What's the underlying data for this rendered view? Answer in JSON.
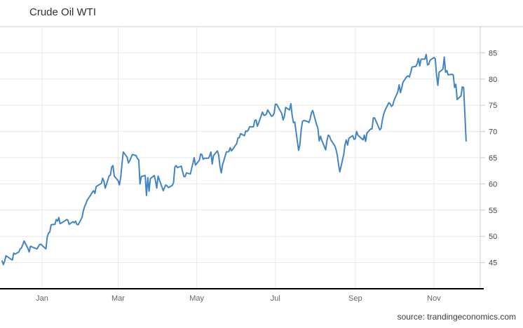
{
  "header": {
    "title": "Crude Oil WTI"
  },
  "footer": {
    "source_label": "source: trandingeconomics.com"
  },
  "colors": {
    "line": "#4285c6",
    "grid": "#e8e8e8",
    "plot_border": "#cccccc",
    "axis_line": "#000000",
    "y_tick_text": "#444444",
    "x_tick_text": "#666666",
    "title_text": "#2f2f2f"
  },
  "chart_data": {
    "type": "line",
    "title": "Crude Oil WTI",
    "xlabel": "",
    "ylabel": "",
    "ylim": [
      40,
      90
    ],
    "y_ticks": [
      45,
      50,
      55,
      60,
      65,
      70,
      75,
      80,
      85
    ],
    "y_axis_side": "right",
    "grid": true,
    "legend_position": "none",
    "x_range": [
      "2020-12-01",
      "2021-11-26"
    ],
    "x_tick_labels": [
      "Jan",
      "Mar",
      "May",
      "Jul",
      "Sep",
      "Nov"
    ],
    "x_tick_dates": [
      "2021-01-01",
      "2021-03-01",
      "2021-05-01",
      "2021-07-01",
      "2021-09-01",
      "2021-11-01"
    ],
    "series": [
      {
        "name": "Crude Oil WTI",
        "points": [
          [
            "2020-12-01",
            45.3
          ],
          [
            "2020-12-02",
            44.6
          ],
          [
            "2020-12-03",
            45.3
          ],
          [
            "2020-12-04",
            46.3
          ],
          [
            "2020-12-07",
            45.8
          ],
          [
            "2020-12-08",
            45.6
          ],
          [
            "2020-12-09",
            45.5
          ],
          [
            "2020-12-10",
            46.8
          ],
          [
            "2020-12-11",
            46.6
          ],
          [
            "2020-12-14",
            47.0
          ],
          [
            "2020-12-15",
            47.6
          ],
          [
            "2020-12-16",
            47.8
          ],
          [
            "2020-12-17",
            48.4
          ],
          [
            "2020-12-18",
            49.1
          ],
          [
            "2020-12-21",
            47.7
          ],
          [
            "2020-12-22",
            47.0
          ],
          [
            "2020-12-23",
            48.1
          ],
          [
            "2020-12-28",
            47.6
          ],
          [
            "2020-12-29",
            48.0
          ],
          [
            "2020-12-30",
            48.4
          ],
          [
            "2020-12-31",
            48.5
          ],
          [
            "2021-01-04",
            47.6
          ],
          [
            "2021-01-05",
            49.9
          ],
          [
            "2021-01-06",
            50.6
          ],
          [
            "2021-01-07",
            50.8
          ],
          [
            "2021-01-08",
            52.2
          ],
          [
            "2021-01-11",
            52.3
          ],
          [
            "2021-01-12",
            53.2
          ],
          [
            "2021-01-13",
            52.9
          ],
          [
            "2021-01-14",
            53.6
          ],
          [
            "2021-01-15",
            52.4
          ],
          [
            "2021-01-19",
            53.0
          ],
          [
            "2021-01-20",
            53.2
          ],
          [
            "2021-01-21",
            53.1
          ],
          [
            "2021-01-22",
            52.3
          ],
          [
            "2021-01-25",
            52.8
          ],
          [
            "2021-01-26",
            52.6
          ],
          [
            "2021-01-27",
            52.9
          ],
          [
            "2021-01-28",
            52.3
          ],
          [
            "2021-01-29",
            52.2
          ],
          [
            "2021-02-01",
            53.6
          ],
          [
            "2021-02-02",
            54.8
          ],
          [
            "2021-02-03",
            55.7
          ],
          [
            "2021-02-04",
            56.2
          ],
          [
            "2021-02-05",
            56.9
          ],
          [
            "2021-02-08",
            58.0
          ],
          [
            "2021-02-09",
            58.4
          ],
          [
            "2021-02-10",
            58.7
          ],
          [
            "2021-02-11",
            58.2
          ],
          [
            "2021-02-12",
            59.5
          ],
          [
            "2021-02-16",
            60.1
          ],
          [
            "2021-02-17",
            61.1
          ],
          [
            "2021-02-18",
            60.5
          ],
          [
            "2021-02-19",
            59.2
          ],
          [
            "2021-02-22",
            61.5
          ],
          [
            "2021-02-23",
            61.7
          ],
          [
            "2021-02-24",
            63.2
          ],
          [
            "2021-02-25",
            63.5
          ],
          [
            "2021-02-26",
            61.5
          ],
          [
            "2021-03-01",
            60.6
          ],
          [
            "2021-03-02",
            59.8
          ],
          [
            "2021-03-03",
            61.3
          ],
          [
            "2021-03-04",
            63.8
          ],
          [
            "2021-03-05",
            66.1
          ],
          [
            "2021-03-08",
            65.1
          ],
          [
            "2021-03-09",
            64.0
          ],
          [
            "2021-03-10",
            64.4
          ],
          [
            "2021-03-11",
            65.0
          ],
          [
            "2021-03-12",
            65.6
          ],
          [
            "2021-03-15",
            65.4
          ],
          [
            "2021-03-16",
            64.8
          ],
          [
            "2021-03-17",
            64.6
          ],
          [
            "2021-03-18",
            60.0
          ],
          [
            "2021-03-19",
            61.4
          ],
          [
            "2021-03-22",
            61.6
          ],
          [
            "2021-03-23",
            57.8
          ],
          [
            "2021-03-24",
            61.2
          ],
          [
            "2021-03-25",
            58.6
          ],
          [
            "2021-03-26",
            61.0
          ],
          [
            "2021-03-29",
            61.6
          ],
          [
            "2021-03-30",
            60.6
          ],
          [
            "2021-03-31",
            59.2
          ],
          [
            "2021-04-01",
            61.5
          ],
          [
            "2021-04-05",
            58.7
          ],
          [
            "2021-04-06",
            59.3
          ],
          [
            "2021-04-07",
            59.8
          ],
          [
            "2021-04-08",
            59.6
          ],
          [
            "2021-04-09",
            59.3
          ],
          [
            "2021-04-12",
            59.7
          ],
          [
            "2021-04-13",
            60.2
          ],
          [
            "2021-04-14",
            63.2
          ],
          [
            "2021-04-15",
            63.5
          ],
          [
            "2021-04-16",
            63.1
          ],
          [
            "2021-04-19",
            63.4
          ],
          [
            "2021-04-20",
            62.4
          ],
          [
            "2021-04-21",
            61.4
          ],
          [
            "2021-04-22",
            61.4
          ],
          [
            "2021-04-23",
            62.1
          ],
          [
            "2021-04-26",
            61.9
          ],
          [
            "2021-04-27",
            62.9
          ],
          [
            "2021-04-28",
            63.9
          ],
          [
            "2021-04-29",
            65.0
          ],
          [
            "2021-04-30",
            63.6
          ],
          [
            "2021-05-03",
            64.5
          ],
          [
            "2021-05-04",
            65.7
          ],
          [
            "2021-05-05",
            65.6
          ],
          [
            "2021-05-06",
            64.7
          ],
          [
            "2021-05-07",
            64.9
          ],
          [
            "2021-05-10",
            64.9
          ],
          [
            "2021-05-11",
            65.3
          ],
          [
            "2021-05-12",
            66.1
          ],
          [
            "2021-05-13",
            63.8
          ],
          [
            "2021-05-14",
            65.4
          ],
          [
            "2021-05-17",
            66.3
          ],
          [
            "2021-05-18",
            65.5
          ],
          [
            "2021-05-19",
            63.4
          ],
          [
            "2021-05-20",
            62.1
          ],
          [
            "2021-05-21",
            63.6
          ],
          [
            "2021-05-24",
            66.1
          ],
          [
            "2021-05-25",
            66.1
          ],
          [
            "2021-05-26",
            66.2
          ],
          [
            "2021-05-27",
            66.9
          ],
          [
            "2021-05-28",
            66.3
          ],
          [
            "2021-06-01",
            67.7
          ],
          [
            "2021-06-02",
            68.8
          ],
          [
            "2021-06-03",
            68.8
          ],
          [
            "2021-06-04",
            69.6
          ],
          [
            "2021-06-07",
            69.2
          ],
          [
            "2021-06-08",
            70.1
          ],
          [
            "2021-06-09",
            70.0
          ],
          [
            "2021-06-10",
            70.3
          ],
          [
            "2021-06-11",
            70.9
          ],
          [
            "2021-06-14",
            70.9
          ],
          [
            "2021-06-15",
            72.1
          ],
          [
            "2021-06-16",
            72.2
          ],
          [
            "2021-06-17",
            71.0
          ],
          [
            "2021-06-18",
            71.6
          ],
          [
            "2021-06-21",
            73.7
          ],
          [
            "2021-06-22",
            73.1
          ],
          [
            "2021-06-23",
            73.1
          ],
          [
            "2021-06-24",
            73.3
          ],
          [
            "2021-06-25",
            74.1
          ],
          [
            "2021-06-28",
            72.9
          ],
          [
            "2021-06-29",
            73.0
          ],
          [
            "2021-06-30",
            73.5
          ],
          [
            "2021-07-01",
            75.2
          ],
          [
            "2021-07-02",
            75.2
          ],
          [
            "2021-07-06",
            73.4
          ],
          [
            "2021-07-07",
            72.2
          ],
          [
            "2021-07-08",
            72.9
          ],
          [
            "2021-07-09",
            74.6
          ],
          [
            "2021-07-12",
            74.1
          ],
          [
            "2021-07-13",
            75.3
          ],
          [
            "2021-07-14",
            73.1
          ],
          [
            "2021-07-15",
            71.7
          ],
          [
            "2021-07-16",
            71.8
          ],
          [
            "2021-07-19",
            66.4
          ],
          [
            "2021-07-20",
            67.4
          ],
          [
            "2021-07-21",
            70.3
          ],
          [
            "2021-07-22",
            71.9
          ],
          [
            "2021-07-23",
            72.1
          ],
          [
            "2021-07-26",
            71.9
          ],
          [
            "2021-07-27",
            71.7
          ],
          [
            "2021-07-28",
            72.4
          ],
          [
            "2021-07-29",
            73.6
          ],
          [
            "2021-07-30",
            74.0
          ],
          [
            "2021-08-02",
            71.3
          ],
          [
            "2021-08-03",
            70.6
          ],
          [
            "2021-08-04",
            68.2
          ],
          [
            "2021-08-05",
            69.1
          ],
          [
            "2021-08-06",
            68.3
          ],
          [
            "2021-08-09",
            66.5
          ],
          [
            "2021-08-10",
            68.3
          ],
          [
            "2021-08-11",
            69.3
          ],
          [
            "2021-08-12",
            69.1
          ],
          [
            "2021-08-13",
            68.4
          ],
          [
            "2021-08-16",
            67.3
          ],
          [
            "2021-08-17",
            66.6
          ],
          [
            "2021-08-18",
            65.5
          ],
          [
            "2021-08-19",
            63.7
          ],
          [
            "2021-08-20",
            62.3
          ],
          [
            "2021-08-23",
            65.6
          ],
          [
            "2021-08-24",
            67.5
          ],
          [
            "2021-08-25",
            68.4
          ],
          [
            "2021-08-26",
            67.4
          ],
          [
            "2021-08-27",
            68.7
          ],
          [
            "2021-08-30",
            69.2
          ],
          [
            "2021-08-31",
            68.5
          ],
          [
            "2021-09-01",
            68.6
          ],
          [
            "2021-09-02",
            70.0
          ],
          [
            "2021-09-03",
            69.3
          ],
          [
            "2021-09-07",
            68.4
          ],
          [
            "2021-09-08",
            69.3
          ],
          [
            "2021-09-09",
            68.1
          ],
          [
            "2021-09-10",
            69.7
          ],
          [
            "2021-09-13",
            70.5
          ],
          [
            "2021-09-14",
            70.5
          ],
          [
            "2021-09-15",
            72.6
          ],
          [
            "2021-09-16",
            72.6
          ],
          [
            "2021-09-17",
            72.0
          ],
          [
            "2021-09-20",
            70.3
          ],
          [
            "2021-09-21",
            70.6
          ],
          [
            "2021-09-22",
            72.2
          ],
          [
            "2021-09-23",
            73.3
          ],
          [
            "2021-09-24",
            74.0
          ],
          [
            "2021-09-27",
            75.5
          ],
          [
            "2021-09-28",
            75.3
          ],
          [
            "2021-09-29",
            74.8
          ],
          [
            "2021-09-30",
            75.0
          ],
          [
            "2021-10-01",
            75.9
          ],
          [
            "2021-10-04",
            77.6
          ],
          [
            "2021-10-05",
            78.9
          ],
          [
            "2021-10-06",
            77.4
          ],
          [
            "2021-10-07",
            78.3
          ],
          [
            "2021-10-08",
            79.4
          ],
          [
            "2021-10-11",
            80.5
          ],
          [
            "2021-10-12",
            80.6
          ],
          [
            "2021-10-13",
            80.4
          ],
          [
            "2021-10-14",
            81.3
          ],
          [
            "2021-10-15",
            82.3
          ],
          [
            "2021-10-18",
            82.4
          ],
          [
            "2021-10-19",
            83.0
          ],
          [
            "2021-10-20",
            83.9
          ],
          [
            "2021-10-21",
            82.5
          ],
          [
            "2021-10-22",
            83.8
          ],
          [
            "2021-10-25",
            83.8
          ],
          [
            "2021-10-26",
            84.7
          ],
          [
            "2021-10-27",
            82.7
          ],
          [
            "2021-10-28",
            82.8
          ],
          [
            "2021-10-29",
            83.6
          ],
          [
            "2021-11-01",
            84.1
          ],
          [
            "2021-11-02",
            83.9
          ],
          [
            "2021-11-03",
            80.9
          ],
          [
            "2021-11-04",
            78.8
          ],
          [
            "2021-11-05",
            81.3
          ],
          [
            "2021-11-08",
            81.9
          ],
          [
            "2021-11-09",
            84.2
          ],
          [
            "2021-11-10",
            81.3
          ],
          [
            "2021-11-11",
            81.6
          ],
          [
            "2021-11-12",
            80.8
          ],
          [
            "2021-11-15",
            80.9
          ],
          [
            "2021-11-16",
            80.8
          ],
          [
            "2021-11-17",
            78.4
          ],
          [
            "2021-11-18",
            79.0
          ],
          [
            "2021-11-19",
            76.1
          ],
          [
            "2021-11-22",
            76.8
          ],
          [
            "2021-11-23",
            78.5
          ],
          [
            "2021-11-24",
            78.4
          ],
          [
            "2021-11-26",
            68.2
          ]
        ]
      }
    ]
  }
}
